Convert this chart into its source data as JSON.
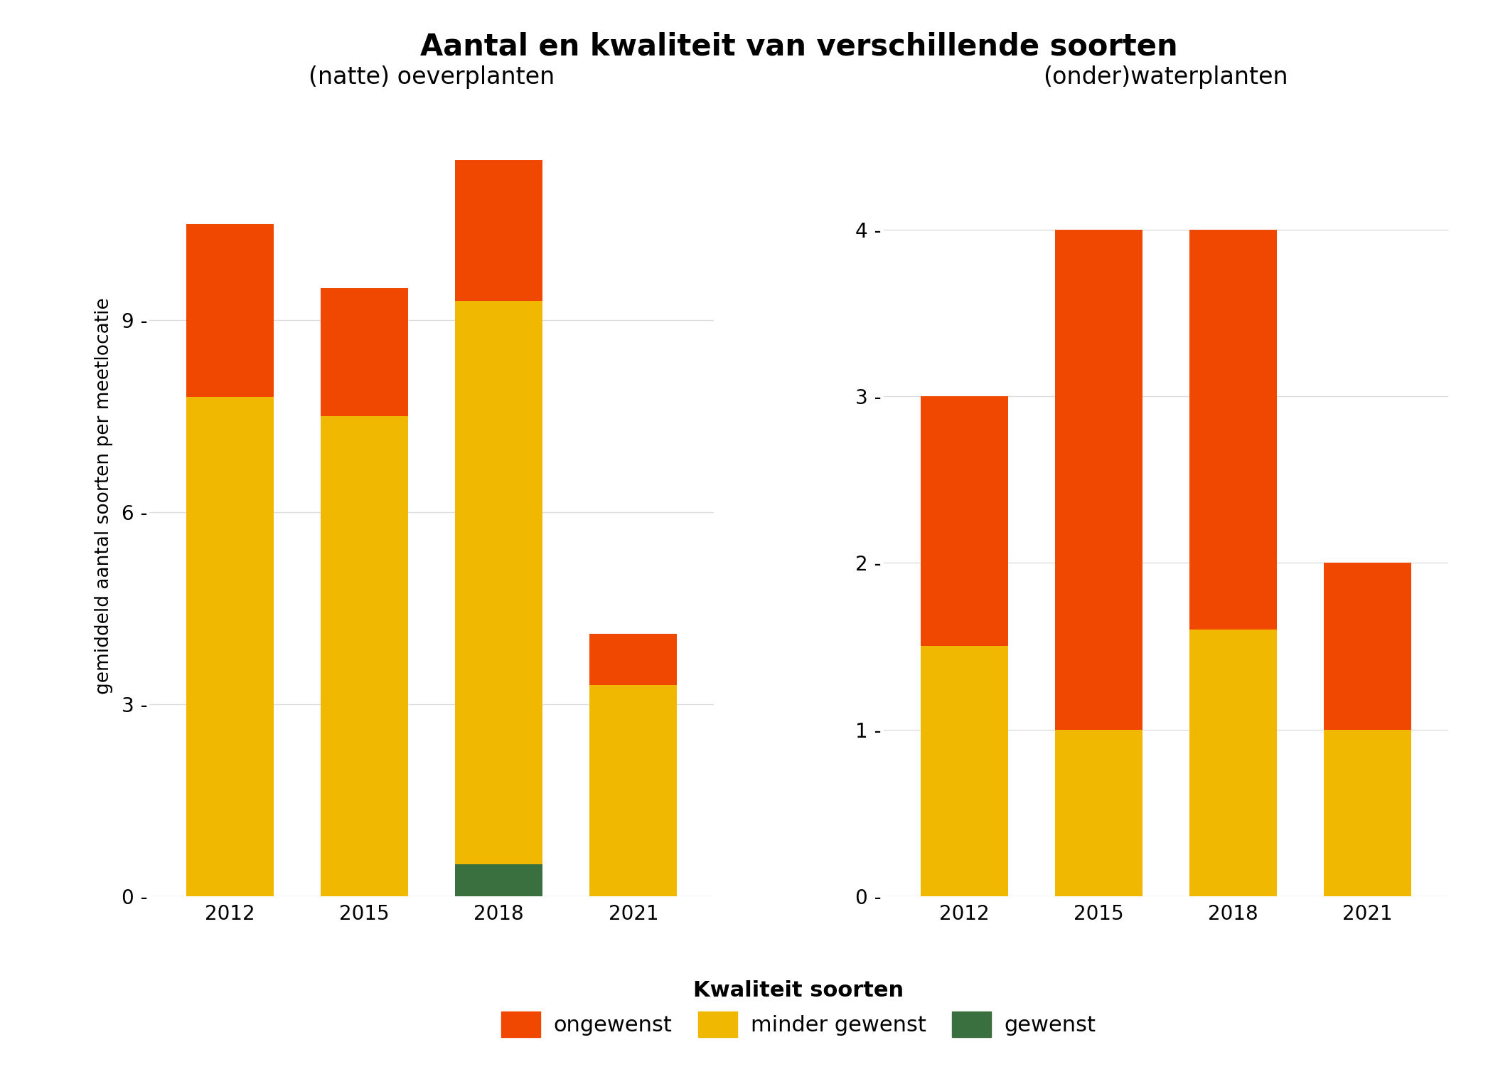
{
  "title": "Aantal en kwaliteit van verschillende soorten",
  "subtitle_left": "(natte) oeverplanten",
  "subtitle_right": "(onder)waterplanten",
  "ylabel": "gemiddeld aantal soorten per meetlocatie",
  "legend_title": "Kwaliteit soorten",
  "legend_labels": [
    "ongewenst",
    "minder gewenst",
    "gewenst"
  ],
  "colors": {
    "ongewenst": "#F04800",
    "minder_gewenst": "#F0B800",
    "gewenst": "#3A7040"
  },
  "left": {
    "years": [
      "2012",
      "2015",
      "2018",
      "2021"
    ],
    "gewenst": [
      0.0,
      0.0,
      0.5,
      0.0
    ],
    "minder_gewenst": [
      7.8,
      7.5,
      8.8,
      3.3
    ],
    "ongewenst": [
      2.7,
      2.0,
      2.2,
      0.8
    ]
  },
  "right": {
    "years": [
      "2012",
      "2015",
      "2018",
      "2021"
    ],
    "gewenst": [
      0.0,
      0.0,
      0.0,
      0.0
    ],
    "minder_gewenst": [
      1.5,
      1.0,
      1.6,
      1.0
    ],
    "ongewenst": [
      1.5,
      3.0,
      2.4,
      1.0
    ]
  },
  "left_ylim": [
    0,
    12.5
  ],
  "left_yticks": [
    0,
    3,
    6,
    9
  ],
  "right_ylim": [
    0,
    4.8
  ],
  "right_yticks": [
    0,
    1,
    2,
    3,
    4
  ],
  "background_color": "#FFFFFF",
  "panel_background": "#FFFFFF",
  "grid_color": "#DDDDDD"
}
